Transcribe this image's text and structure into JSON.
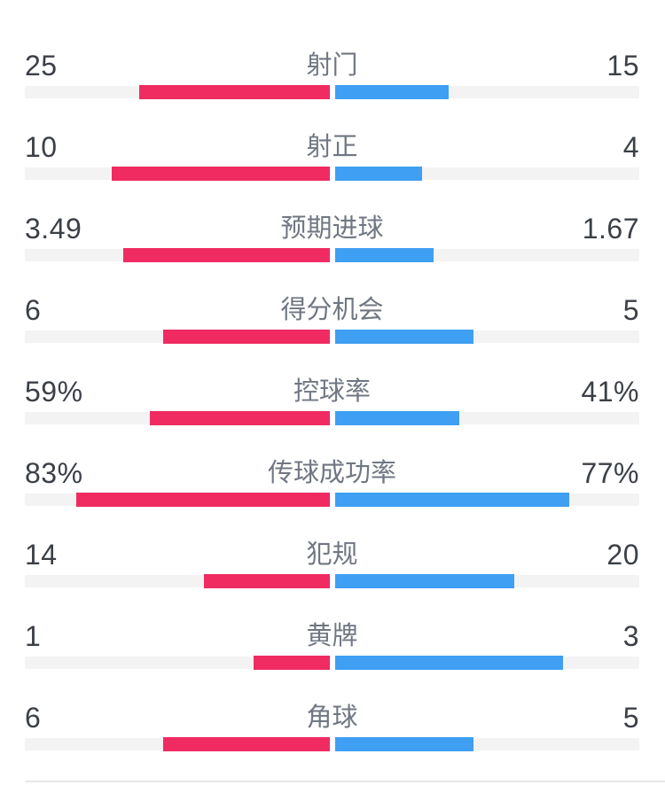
{
  "chart_data": {
    "type": "bar",
    "orientation": "horizontal",
    "layout": "mirrored-from-center-paired-comparison",
    "grid": false,
    "legend": false,
    "theme": {
      "home_color": "#EF2B62",
      "away_color": "#3E9FF3",
      "track_color": "#F3F3F3",
      "value_color": "#3B4047",
      "label_color": "#707783",
      "divider_color": "#E8E8E8"
    },
    "scale_note": "count rows: bar = value/(home+away) of half-width; percent rows: bar = value/100 of half-width",
    "rows": [
      {
        "label": "射门",
        "home": 25,
        "away": 15,
        "home_text": "25",
        "away_text": "15",
        "percent": false
      },
      {
        "label": "射正",
        "home": 10,
        "away": 4,
        "home_text": "10",
        "away_text": "4",
        "percent": false
      },
      {
        "label": "预期进球",
        "home": 3.49,
        "away": 1.67,
        "home_text": "3.49",
        "away_text": "1.67",
        "percent": false
      },
      {
        "label": "得分机会",
        "home": 6,
        "away": 5,
        "home_text": "6",
        "away_text": "5",
        "percent": false
      },
      {
        "label": "控球率",
        "home": 59,
        "away": 41,
        "home_text": "59%",
        "away_text": "41%",
        "percent": true
      },
      {
        "label": "传球成功率",
        "home": 83,
        "away": 77,
        "home_text": "83%",
        "away_text": "77%",
        "percent": true
      },
      {
        "label": "犯规",
        "home": 14,
        "away": 20,
        "home_text": "14",
        "away_text": "20",
        "percent": false
      },
      {
        "label": "黄牌",
        "home": 1,
        "away": 3,
        "home_text": "1",
        "away_text": "3",
        "percent": false
      },
      {
        "label": "角球",
        "home": 6,
        "away": 5,
        "home_text": "6",
        "away_text": "5",
        "percent": false
      }
    ]
  }
}
